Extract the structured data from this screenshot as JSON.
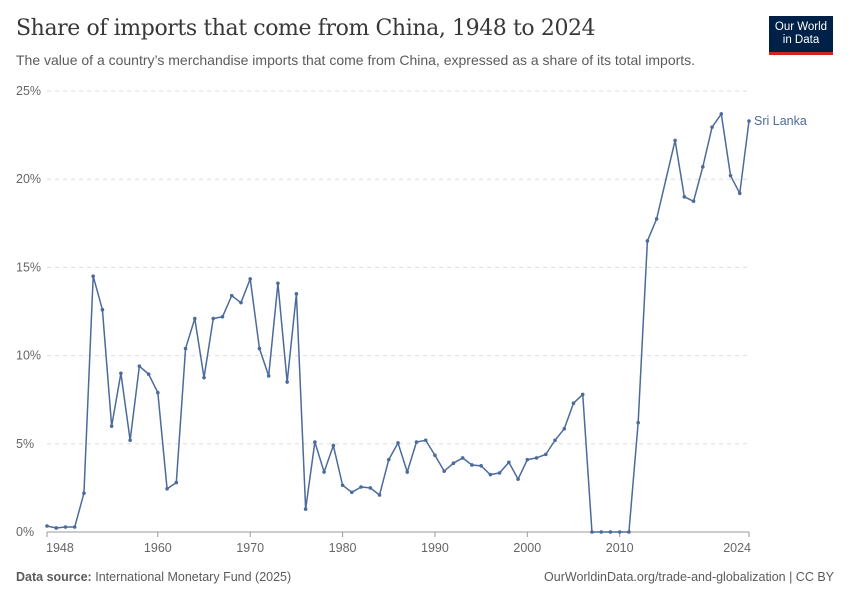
{
  "header": {
    "title": "Share of imports that come from China, 1948 to 2024",
    "subtitle": "The value of a country’s merchandise imports that come from China, expressed as a share of its total imports.",
    "logo_line1": "Our World",
    "logo_line2": "in Data"
  },
  "footer": {
    "source_label": "Data source:",
    "source": "International Monetary Fund (2025)",
    "link": "OurWorldinData.org/trade-and-globalization | CC BY"
  },
  "chart_data": {
    "type": "line",
    "title": "Share of imports that come from China, 1948 to 2024",
    "xlim": [
      1948,
      2024
    ],
    "ylim": [
      0,
      25
    ],
    "grid": true,
    "x_ticks": [
      "1948",
      "1960",
      "1970",
      "1980",
      "1990",
      "2000",
      "2010",
      "2024"
    ],
    "y_ticks": [
      "0%",
      "5%",
      "10%",
      "15%",
      "20%",
      "25%"
    ],
    "color": "#4c6a9c",
    "series": [
      {
        "name": "Sri Lanka",
        "x": [
          1948,
          1949,
          1950,
          1951,
          1952,
          1953,
          1954,
          1955,
          1956,
          1957,
          1958,
          1959,
          1960,
          1961,
          1962,
          1963,
          1964,
          1965,
          1966,
          1967,
          1968,
          1969,
          1970,
          1971,
          1972,
          1973,
          1974,
          1975,
          1976,
          1977,
          1978,
          1979,
          1980,
          1981,
          1982,
          1983,
          1984,
          1985,
          1986,
          1987,
          1988,
          1989,
          1990,
          1991,
          1992,
          1993,
          1994,
          1995,
          1996,
          1997,
          1998,
          1999,
          2000,
          2001,
          2002,
          2003,
          2004,
          2005,
          2006,
          2007,
          2008,
          2009,
          2010,
          2011,
          2012,
          2013,
          2014,
          2016,
          2017,
          2018,
          2019,
          2020,
          2021,
          2022,
          2023,
          2024
        ],
        "y": [
          0.34,
          0.23,
          0.28,
          0.28,
          2.2,
          14.5,
          12.6,
          6.0,
          9.0,
          5.2,
          9.4,
          8.95,
          7.9,
          2.45,
          2.8,
          10.4,
          12.1,
          8.75,
          12.1,
          12.2,
          13.4,
          13.0,
          14.35,
          10.4,
          8.85,
          14.1,
          8.5,
          13.5,
          1.3,
          5.1,
          3.4,
          4.9,
          2.65,
          2.25,
          2.55,
          2.5,
          2.1,
          4.1,
          5.05,
          3.4,
          5.1,
          5.2,
          4.35,
          3.45,
          3.9,
          4.2,
          3.8,
          3.75,
          3.25,
          3.35,
          3.95,
          3.0,
          4.1,
          4.2,
          4.4,
          5.2,
          5.85,
          7.3,
          7.8,
          0,
          0,
          0,
          0,
          0,
          6.2,
          16.5,
          17.75,
          22.2,
          19.0,
          18.75,
          20.7,
          22.95,
          23.7,
          20.2,
          19.2,
          23.3
        ]
      }
    ]
  }
}
